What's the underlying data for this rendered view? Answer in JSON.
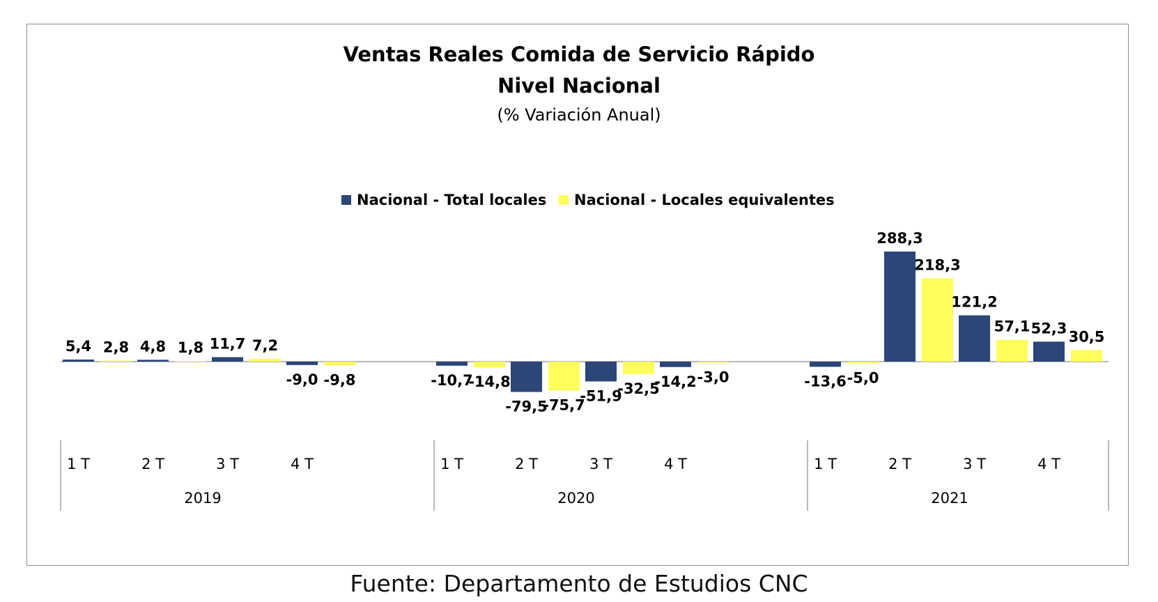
{
  "chart_data": {
    "type": "bar",
    "title": "Ventas Reales Comida de Servicio Rápido",
    "subtitle": "Nivel Nacional",
    "unit_note": "(% Variación Anual)",
    "legend_position": "top-center",
    "grid": false,
    "ylim": [
      -100,
      300
    ],
    "groups": [
      {
        "year": "2019",
        "quarters": [
          "1 T",
          "2 T",
          "3 T",
          "4 T"
        ]
      },
      {
        "year": "2020",
        "quarters": [
          "1 T",
          "2 T",
          "3 T",
          "4 T"
        ]
      },
      {
        "year": "2021",
        "quarters": [
          "1 T",
          "2 T",
          "3 T",
          "4 T"
        ]
      }
    ],
    "series": [
      {
        "name": "Nacional - Total locales",
        "color": "#2b4677",
        "values": [
          5.4,
          4.8,
          11.7,
          -9.0,
          -10.7,
          -79.5,
          -51.9,
          -14.2,
          -13.6,
          288.3,
          121.2,
          52.3
        ],
        "labels": [
          "5,4",
          "4,8",
          "11,7",
          "-9,0",
          "-10,7",
          "-79,5",
          "-51,9",
          "-14,2",
          "-13,6",
          "288,3",
          "121,2",
          "52,3"
        ]
      },
      {
        "name": "Nacional - Locales equivalentes",
        "color": "#fdfd5b",
        "values": [
          2.8,
          1.8,
          7.2,
          -9.8,
          -14.8,
          -75.7,
          -32.5,
          -3.0,
          -5.0,
          218.3,
          57.1,
          30.5
        ],
        "labels": [
          "2,8",
          "1,8",
          "7,2",
          "-9,8",
          "-14,8",
          "-75,7",
          "-32,5",
          "-3,0",
          "-5,0",
          "218,3",
          "57,1",
          "30,5"
        ]
      }
    ]
  },
  "source": "Fuente: Departamento de Estudios CNC"
}
